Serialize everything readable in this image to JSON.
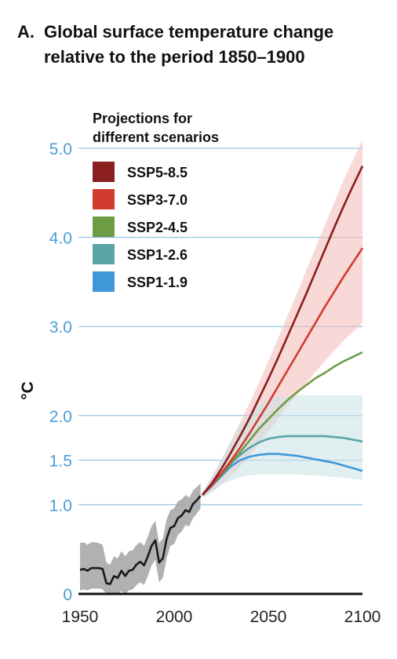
{
  "title": {
    "letter": "A.",
    "line1": "Global surface temperature change",
    "line2": "relative to the period 1850–1900"
  },
  "chart_data": {
    "type": "line",
    "xlabel": "",
    "ylabel": "°C",
    "xlim": [
      1950,
      2100
    ],
    "ylim": [
      0,
      5.0
    ],
    "y_ticks": [
      {
        "value": 0,
        "label": "0"
      },
      {
        "value": 1.0,
        "label": "1.0"
      },
      {
        "value": 1.5,
        "label": "1.5"
      },
      {
        "value": 2.0,
        "label": "2.0"
      },
      {
        "value": 3.0,
        "label": "3.0"
      },
      {
        "value": 4.0,
        "label": "4.0"
      },
      {
        "value": 5.0,
        "label": "5.0"
      }
    ],
    "x_ticks": [
      {
        "value": 1950,
        "label": "1950"
      },
      {
        "value": 2000,
        "label": "2000"
      },
      {
        "value": 2050,
        "label": "2050"
      },
      {
        "value": 2100,
        "label": "2100"
      }
    ],
    "grid": true,
    "legend": {
      "title_line1": "Projections for",
      "title_line2": "different scenarios",
      "placement": "top-left"
    },
    "historical": {
      "color": "#1a1a1a",
      "band_color": "#a9a9a9",
      "x": [
        1950,
        1952,
        1954,
        1956,
        1958,
        1960,
        1962,
        1964,
        1966,
        1968,
        1970,
        1972,
        1974,
        1976,
        1978,
        1980,
        1982,
        1984,
        1986,
        1988,
        1990,
        1992,
        1994,
        1996,
        1998,
        2000,
        2002,
        2004,
        2006,
        2008,
        2010,
        2012,
        2014
      ],
      "values": [
        0.27,
        0.28,
        0.26,
        0.29,
        0.29,
        0.29,
        0.28,
        0.12,
        0.11,
        0.2,
        0.18,
        0.26,
        0.2,
        0.26,
        0.27,
        0.33,
        0.36,
        0.32,
        0.42,
        0.54,
        0.6,
        0.35,
        0.4,
        0.62,
        0.74,
        0.76,
        0.85,
        0.88,
        0.94,
        0.92,
        1.01,
        1.05,
        1.1
      ],
      "lower": [
        0.04,
        0.05,
        0.04,
        0.06,
        0.06,
        0.06,
        0.05,
        0.0,
        0.0,
        0.0,
        0.0,
        0.03,
        0.0,
        0.04,
        0.05,
        0.1,
        0.13,
        0.1,
        0.2,
        0.32,
        0.38,
        0.13,
        0.18,
        0.4,
        0.54,
        0.56,
        0.66,
        0.7,
        0.77,
        0.76,
        0.85,
        0.9,
        0.96
      ],
      "upper": [
        0.57,
        0.58,
        0.55,
        0.58,
        0.58,
        0.57,
        0.55,
        0.35,
        0.33,
        0.42,
        0.4,
        0.48,
        0.42,
        0.48,
        0.49,
        0.55,
        0.58,
        0.54,
        0.64,
        0.76,
        0.82,
        0.57,
        0.62,
        0.84,
        0.94,
        0.96,
        1.04,
        1.06,
        1.11,
        1.08,
        1.16,
        1.2,
        1.24
      ]
    },
    "x": [
      2015,
      2020,
      2025,
      2030,
      2035,
      2040,
      2045,
      2050,
      2055,
      2060,
      2065,
      2070,
      2075,
      2080,
      2085,
      2090,
      2095,
      2100
    ],
    "series": [
      {
        "name": "SSP5-8.5",
        "color": "#8b1e1e",
        "values": [
          1.11,
          1.24,
          1.4,
          1.58,
          1.77,
          1.97,
          2.19,
          2.41,
          2.64,
          2.88,
          3.12,
          3.36,
          3.61,
          3.86,
          4.11,
          4.35,
          4.58,
          4.8
        ]
      },
      {
        "name": "SSP3-7.0",
        "color": "#d23b2f",
        "values": [
          1.11,
          1.22,
          1.35,
          1.49,
          1.64,
          1.8,
          1.97,
          2.14,
          2.32,
          2.5,
          2.68,
          2.86,
          3.04,
          3.22,
          3.39,
          3.56,
          3.72,
          3.88
        ]
      },
      {
        "name": "SSP2-4.5",
        "color": "#6e9c45",
        "values": [
          1.11,
          1.22,
          1.34,
          1.46,
          1.59,
          1.72,
          1.85,
          1.96,
          2.07,
          2.17,
          2.26,
          2.34,
          2.42,
          2.48,
          2.55,
          2.61,
          2.66,
          2.71
        ]
      },
      {
        "name": "SSP1-2.6",
        "color": "#5ba4a8",
        "values": [
          1.11,
          1.22,
          1.34,
          1.46,
          1.56,
          1.64,
          1.7,
          1.74,
          1.76,
          1.77,
          1.77,
          1.77,
          1.77,
          1.77,
          1.76,
          1.75,
          1.73,
          1.71
        ]
      },
      {
        "name": "SSP1-1.9",
        "color": "#3f97da",
        "values": [
          1.11,
          1.21,
          1.32,
          1.43,
          1.5,
          1.54,
          1.56,
          1.57,
          1.57,
          1.56,
          1.55,
          1.53,
          1.51,
          1.49,
          1.47,
          1.44,
          1.41,
          1.38
        ]
      }
    ],
    "bands": [
      {
        "name": "SSP3-7.0 range",
        "color": "#f4b9b6",
        "lower": [
          1.08,
          1.15,
          1.23,
          1.32,
          1.43,
          1.55,
          1.68,
          1.82,
          1.96,
          2.1,
          2.23,
          2.36,
          2.49,
          2.61,
          2.73,
          2.84,
          2.94,
          3.04
        ],
        "upper": [
          1.14,
          1.31,
          1.5,
          1.71,
          1.92,
          2.14,
          2.37,
          2.61,
          2.86,
          3.11,
          3.36,
          3.62,
          3.88,
          4.14,
          4.39,
          4.64,
          4.87,
          5.1
        ]
      },
      {
        "name": "SSP1-2.6 range",
        "color": "#c9e1e5",
        "lower": [
          1.08,
          1.14,
          1.22,
          1.27,
          1.31,
          1.33,
          1.34,
          1.34,
          1.34,
          1.34,
          1.34,
          1.33,
          1.33,
          1.32,
          1.31,
          1.3,
          1.29,
          1.28
        ],
        "upper": [
          1.14,
          1.31,
          1.51,
          1.71,
          1.89,
          2.03,
          2.13,
          2.19,
          2.21,
          2.22,
          2.23,
          2.23,
          2.23,
          2.23,
          2.23,
          2.23,
          2.23,
          2.23
        ]
      }
    ]
  }
}
